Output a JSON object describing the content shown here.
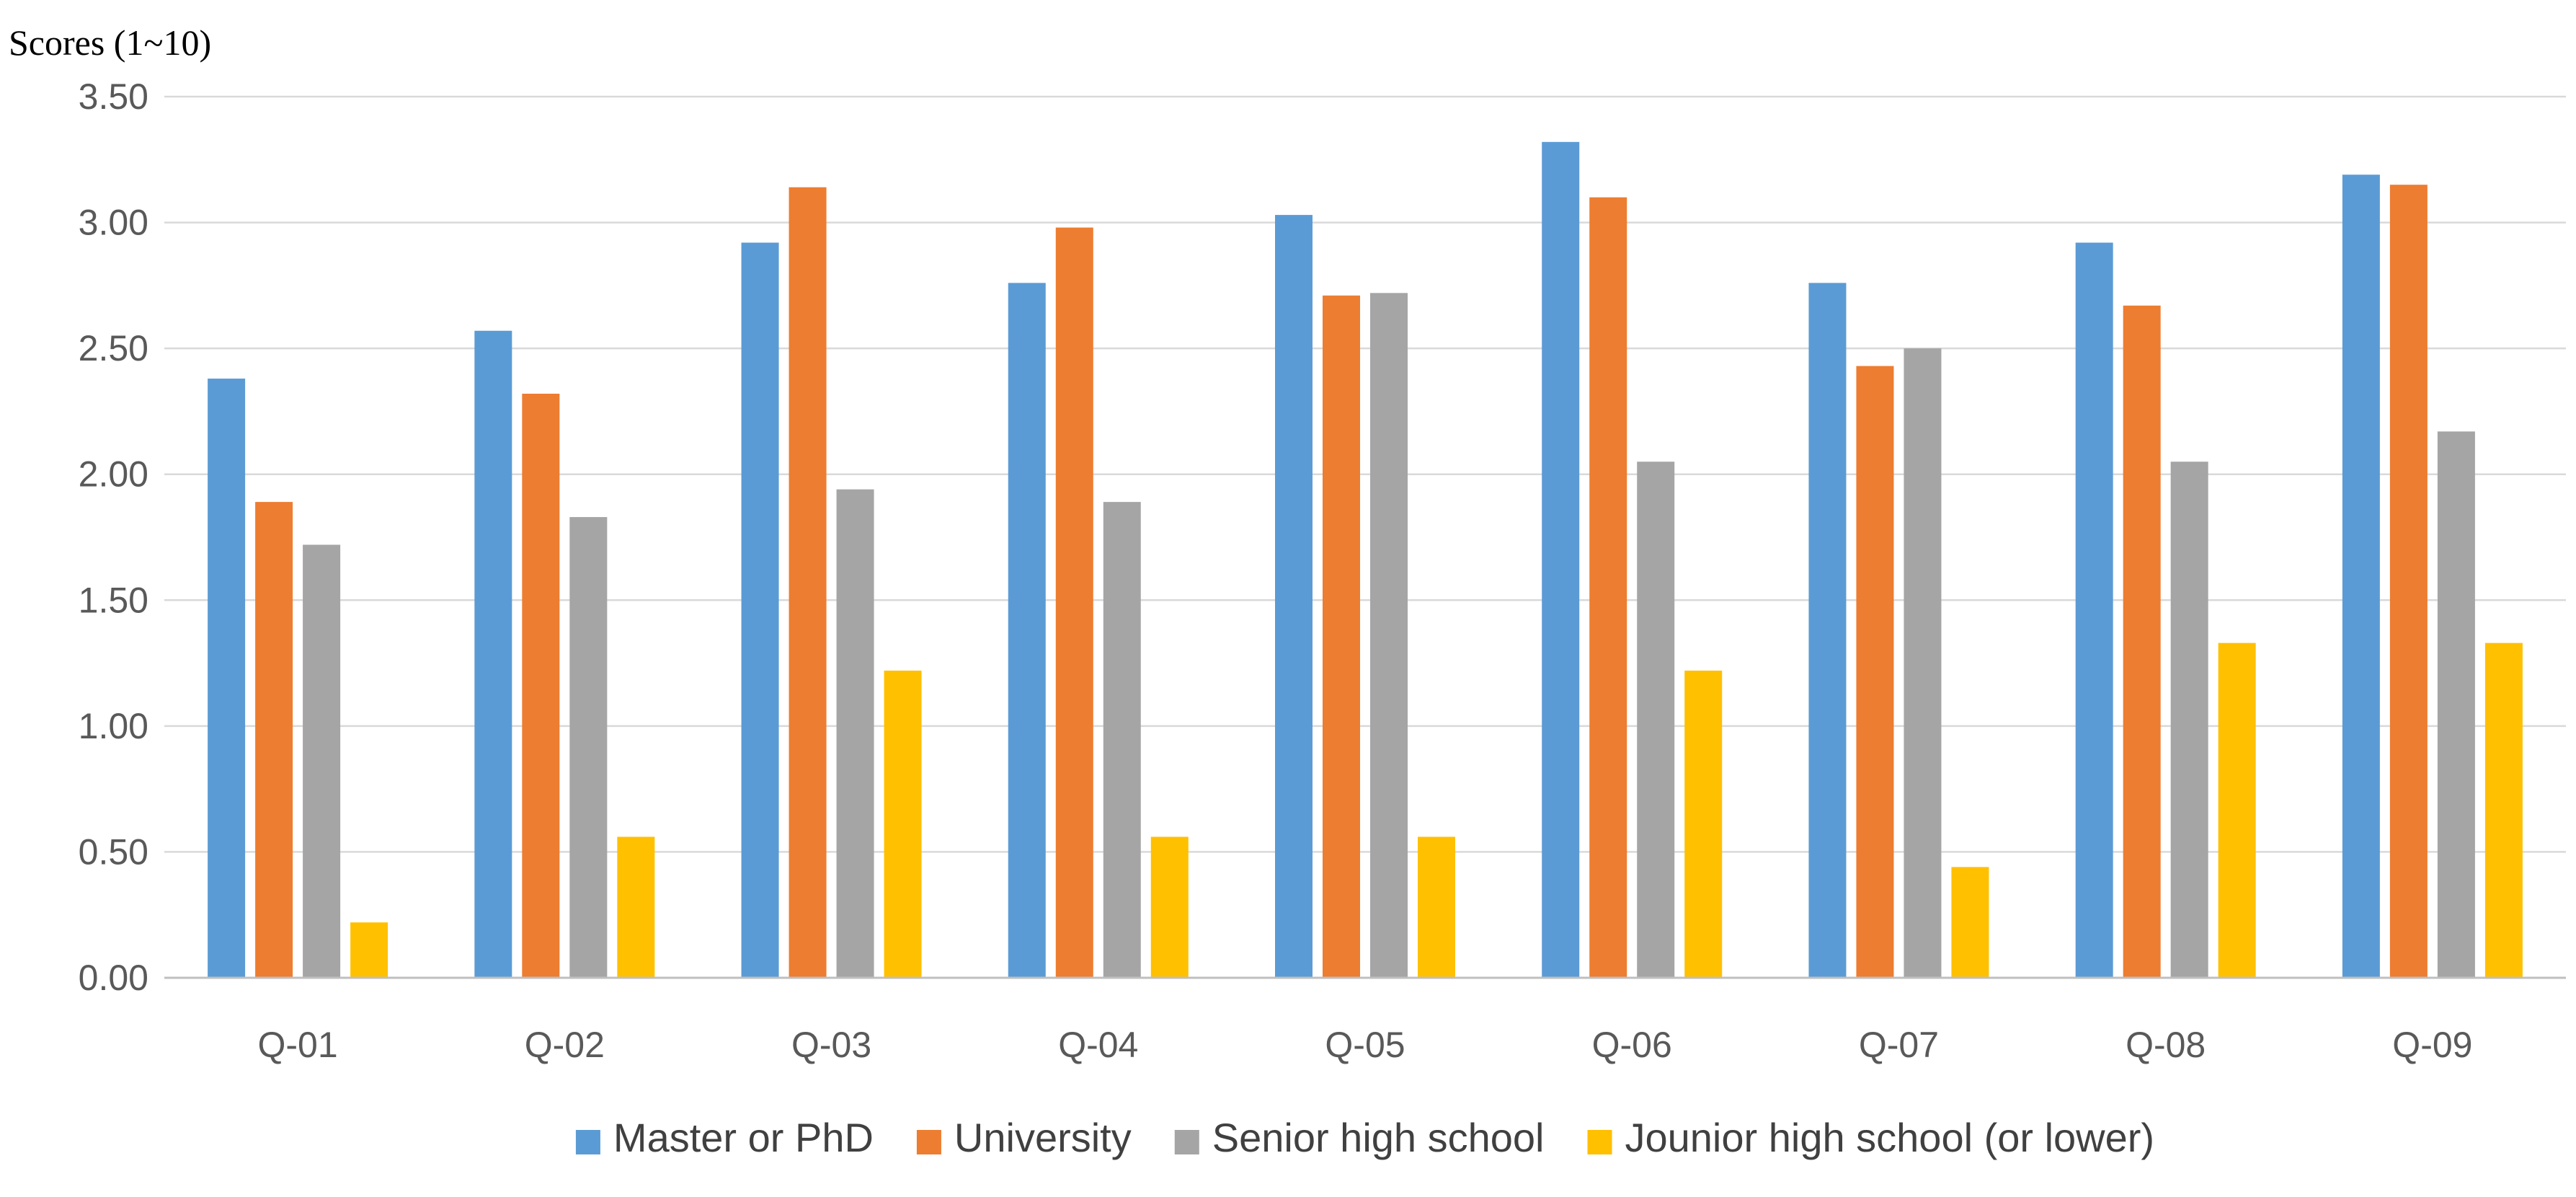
{
  "chart_data": {
    "type": "bar",
    "title": "",
    "ylabel": "Scores (1~10)",
    "xlabel": "",
    "ylim": [
      0,
      3.5
    ],
    "ytick_step": 0.5,
    "ytick_labels": [
      "0.00",
      "0.50",
      "1.00",
      "1.50",
      "2.00",
      "2.50",
      "3.00",
      "3.50"
    ],
    "grid": true,
    "legend_position": "bottom",
    "categories": [
      "Q-01",
      "Q-02",
      "Q-03",
      "Q-04",
      "Q-05",
      "Q-06",
      "Q-07",
      "Q-08",
      "Q-09"
    ],
    "series": [
      {
        "name": "Master or PhD",
        "color": "#5B9BD5",
        "values": [
          2.38,
          2.57,
          2.92,
          2.76,
          3.03,
          3.32,
          2.76,
          2.92,
          3.19
        ]
      },
      {
        "name": "University",
        "color": "#ED7D31",
        "values": [
          1.89,
          2.32,
          3.14,
          2.98,
          2.71,
          3.1,
          2.43,
          2.67,
          3.15
        ]
      },
      {
        "name": "Senior high school",
        "color": "#A5A5A5",
        "values": [
          1.72,
          1.83,
          1.94,
          1.89,
          2.72,
          2.05,
          2.5,
          2.05,
          2.17
        ]
      },
      {
        "name": "Jounior high school (or lower)",
        "color": "#FFC000",
        "values": [
          0.22,
          0.56,
          1.22,
          0.56,
          0.56,
          1.22,
          0.44,
          1.33,
          1.33
        ]
      }
    ]
  }
}
